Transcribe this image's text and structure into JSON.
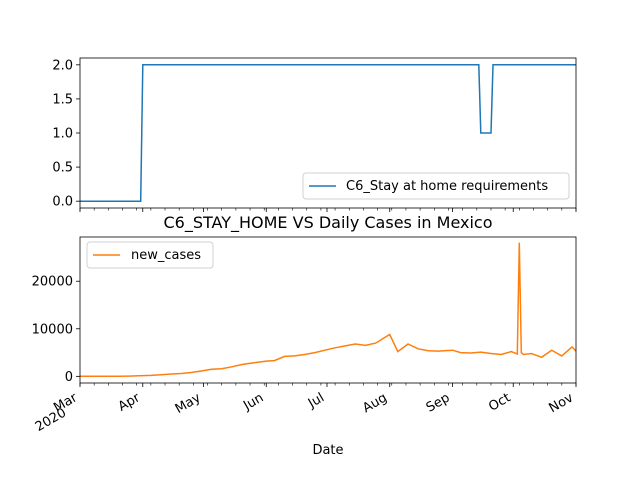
{
  "chart_data": [
    {
      "type": "line",
      "title": "",
      "xlabel": "",
      "ylabel": "",
      "ylim": [
        -0.1,
        2.1
      ],
      "yticks": [
        "0.0",
        "0.5",
        "1.0",
        "1.5",
        "2.0"
      ],
      "ytick_values": [
        0,
        0.5,
        1.0,
        1.5,
        2.0
      ],
      "legend_position": "lower right",
      "series": [
        {
          "name": "C6_Stay at home requirements",
          "color": "#1f77b4",
          "x": [
            "2020-03-01",
            "2020-03-31",
            "2020-04-01",
            "2020-09-14",
            "2020-09-15",
            "2020-09-20",
            "2020-09-21",
            "2020-11-01"
          ],
          "values": [
            0,
            0,
            2,
            2,
            1,
            1,
            2,
            2
          ]
        }
      ]
    },
    {
      "type": "line",
      "title": "C6_STAY_HOME VS Daily Cases in Mexico",
      "xlabel": "Date",
      "ylabel": "",
      "ylim": [
        -1400,
        29300
      ],
      "yticks": [
        "0",
        "10000",
        "20000"
      ],
      "ytick_values": [
        0,
        10000,
        20000
      ],
      "xticks": [
        "Mar\n2020",
        "Apr",
        "May",
        "Jun",
        "Jul",
        "Aug",
        "Sep",
        "Oct",
        "Nov"
      ],
      "xtick_values": [
        "2020-03-01",
        "2020-04-01",
        "2020-05-01",
        "2020-06-01",
        "2020-07-01",
        "2020-08-01",
        "2020-09-01",
        "2020-10-01",
        "2020-11-01"
      ],
      "legend_position": "upper left",
      "series": [
        {
          "name": "new_cases",
          "color": "#ff7f0e",
          "x": [
            "2020-03-01",
            "2020-03-10",
            "2020-03-20",
            "2020-03-25",
            "2020-03-30",
            "2020-04-05",
            "2020-04-10",
            "2020-04-15",
            "2020-04-20",
            "2020-04-25",
            "2020-05-01",
            "2020-05-05",
            "2020-05-10",
            "2020-05-15",
            "2020-05-20",
            "2020-05-25",
            "2020-06-01",
            "2020-06-05",
            "2020-06-10",
            "2020-06-15",
            "2020-06-20",
            "2020-06-25",
            "2020-07-01",
            "2020-07-05",
            "2020-07-10",
            "2020-07-15",
            "2020-07-20",
            "2020-07-25",
            "2020-08-01",
            "2020-08-05",
            "2020-08-10",
            "2020-08-15",
            "2020-08-20",
            "2020-08-25",
            "2020-09-01",
            "2020-09-05",
            "2020-09-10",
            "2020-09-15",
            "2020-09-20",
            "2020-09-25",
            "2020-09-30",
            "2020-10-03",
            "2020-10-04",
            "2020-10-05",
            "2020-10-06",
            "2020-10-10",
            "2020-10-15",
            "2020-10-20",
            "2020-10-25",
            "2020-10-30",
            "2020-11-01"
          ],
          "values": [
            0,
            0,
            20,
            60,
            120,
            200,
            350,
            500,
            600,
            800,
            1200,
            1500,
            1600,
            2000,
            2500,
            2800,
            3200,
            3300,
            4200,
            4300,
            4600,
            5000,
            5600,
            6000,
            6400,
            6800,
            6500,
            7000,
            8800,
            5200,
            6800,
            5800,
            5400,
            5300,
            5500,
            5000,
            4900,
            5100,
            4800,
            4600,
            5200,
            4700,
            28100,
            5000,
            4600,
            4800,
            4000,
            5500,
            4300,
            6200,
            5300
          ]
        }
      ]
    }
  ]
}
